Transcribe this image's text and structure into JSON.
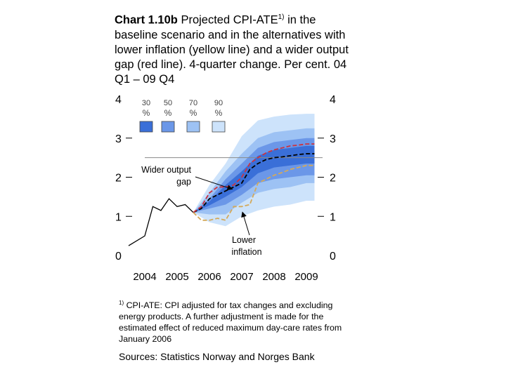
{
  "title": {
    "bold": "Chart 1.10b",
    "text": " Projected CPI-ATE",
    "sup": "1)",
    "rest": " in the baseline scenario and in the alternatives with lower inflation (yellow line) and a wider output gap (red line). 4-quarter change. Per cent. 04 Q1 – 09 Q4"
  },
  "footnote": {
    "marker": "1)",
    "text": " CPI-ATE: CPI adjusted for tax changes and excluding energy products. A further adjustment is made for the estimated effect of reduced maximum day-care rates from January 2006"
  },
  "sources": "Sources: Statistics Norway and Norges Bank",
  "chart_data": {
    "type": "line",
    "xlim": [
      2004.0,
      2010.0
    ],
    "ylim": [
      0,
      4
    ],
    "x_ticks": [
      "2004",
      "2005",
      "2006",
      "2007",
      "2008",
      "2009"
    ],
    "y_ticks_left": [
      "0",
      "1",
      "2",
      "3",
      "4"
    ],
    "y_ticks_right": [
      "0",
      "1",
      "2",
      "3",
      "4"
    ],
    "reference_line_y": 2.5,
    "legend": {
      "placement": "top-left",
      "entries": [
        {
          "label": "30 %",
          "color": "#3a6fd8"
        },
        {
          "label": "50 %",
          "color": "#6b97e8"
        },
        {
          "label": "70 %",
          "color": "#9dc2f4"
        },
        {
          "label": "90 %",
          "color": "#cde3fb"
        }
      ]
    },
    "fan_bands": [
      {
        "level": "90 %",
        "color": "#cde3fb",
        "x": [
          2006.0,
          2006.5,
          2007.0,
          2007.5,
          2008.0,
          2008.5,
          2009.0,
          2009.5,
          2009.75
        ],
        "lower": [
          1.1,
          0.85,
          0.75,
          1.0,
          1.15,
          1.25,
          1.3,
          1.4,
          1.4
        ],
        "upper": [
          1.1,
          1.8,
          2.35,
          3.05,
          3.45,
          3.55,
          3.6,
          3.62,
          3.62
        ]
      },
      {
        "level": "70 %",
        "color": "#9dc2f4",
        "x": [
          2006.0,
          2006.5,
          2007.0,
          2007.5,
          2008.0,
          2008.5,
          2009.0,
          2009.5,
          2009.75
        ],
        "lower": [
          1.1,
          1.05,
          1.05,
          1.35,
          1.6,
          1.7,
          1.75,
          1.85,
          1.85
        ],
        "upper": [
          1.1,
          1.6,
          2.15,
          2.6,
          3.0,
          3.15,
          3.2,
          3.25,
          3.25
        ]
      },
      {
        "level": "50 %",
        "color": "#6b97e8",
        "x": [
          2006.0,
          2006.5,
          2007.0,
          2007.5,
          2008.0,
          2008.5,
          2009.0,
          2009.5,
          2009.75
        ],
        "lower": [
          1.1,
          1.2,
          1.3,
          1.55,
          1.85,
          1.95,
          2.0,
          2.05,
          2.05
        ],
        "upper": [
          1.1,
          1.45,
          1.95,
          2.35,
          2.75,
          2.9,
          2.95,
          3.0,
          3.0
        ]
      },
      {
        "level": "30 %",
        "color": "#3a6fd8",
        "x": [
          2006.0,
          2006.5,
          2007.0,
          2007.5,
          2008.0,
          2008.5,
          2009.0,
          2009.5,
          2009.75
        ],
        "lower": [
          1.1,
          1.28,
          1.5,
          1.75,
          2.1,
          2.25,
          2.3,
          2.35,
          2.35
        ],
        "upper": [
          1.1,
          1.38,
          1.8,
          2.15,
          2.55,
          2.7,
          2.75,
          2.8,
          2.8
        ]
      }
    ],
    "series": [
      {
        "style": "solid",
        "color": "#000000",
        "x": [
          2004.0,
          2004.5,
          2004.75,
          2005.0,
          2005.25,
          2005.5,
          2005.75,
          2006.0
        ],
        "y": [
          0.25,
          0.5,
          1.25,
          1.15,
          1.45,
          1.25,
          1.3,
          1.1
        ]
      },
      {
        "style": "dashed",
        "color": "#000000",
        "x": [
          2006.0,
          2006.25,
          2006.5,
          2006.75,
          2007.0,
          2007.25,
          2007.5,
          2007.75,
          2008.0,
          2008.25,
          2008.5,
          2008.75,
          2009.0,
          2009.25,
          2009.5,
          2009.75
        ],
        "y": [
          1.1,
          1.2,
          1.45,
          1.55,
          1.65,
          1.75,
          1.85,
          2.2,
          2.35,
          2.45,
          2.5,
          2.52,
          2.55,
          2.58,
          2.6,
          2.6
        ]
      },
      {
        "style": "dashed",
        "color": "#cc3340",
        "x": [
          2006.0,
          2006.25,
          2006.5,
          2006.75,
          2007.0,
          2007.25,
          2007.5,
          2007.75,
          2008.0,
          2008.25,
          2008.5,
          2008.75,
          2009.0,
          2009.25,
          2009.5,
          2009.75
        ],
        "y": [
          1.1,
          1.25,
          1.6,
          1.75,
          1.75,
          1.8,
          2.0,
          2.35,
          2.5,
          2.62,
          2.7,
          2.75,
          2.8,
          2.82,
          2.85,
          2.85
        ]
      },
      {
        "style": "dashed",
        "color": "#d4a95a",
        "x": [
          2006.0,
          2006.25,
          2006.5,
          2006.75,
          2007.0,
          2007.25,
          2007.5,
          2007.75,
          2008.0,
          2008.25,
          2008.5,
          2008.75,
          2009.0,
          2009.25,
          2009.5,
          2009.75
        ],
        "y": [
          1.1,
          0.9,
          0.9,
          0.95,
          0.9,
          1.25,
          1.25,
          1.3,
          1.85,
          1.95,
          2.05,
          2.12,
          2.2,
          2.25,
          2.3,
          2.3
        ]
      }
    ],
    "annotations": [
      {
        "text": "Wider output gap",
        "target_x": 2007.25,
        "target_y": 1.75
      },
      {
        "text": "Lower inflation",
        "target_x": 2007.5,
        "target_y": 1.25
      }
    ]
  }
}
